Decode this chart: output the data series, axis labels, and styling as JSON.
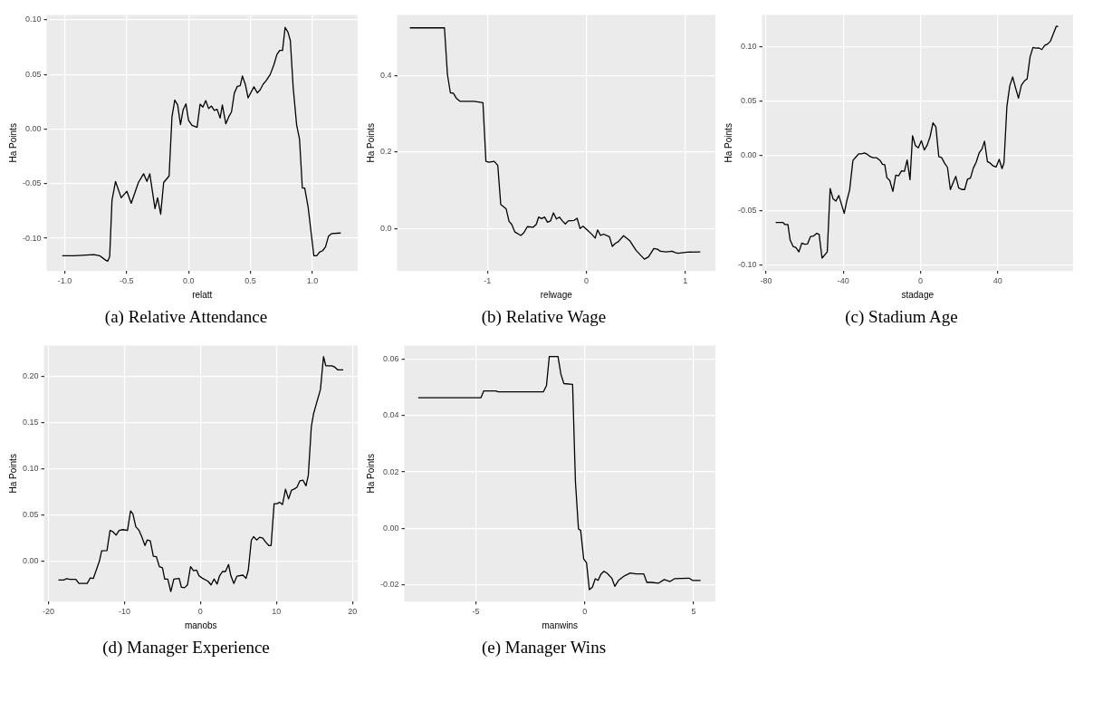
{
  "chart_data": [
    {
      "type": "line",
      "title": "(a) Relative Attendance",
      "xlabel": "relatt",
      "ylabel": "Ha Points",
      "grid": true,
      "xlim": [
        -1.146,
        1.366
      ],
      "xticks": [
        {
          "value": -1,
          "label": "-1.0"
        },
        -0.5,
        {
          "value": 0,
          "label": "0.0"
        },
        0.5,
        {
          "value": 1,
          "label": "1.0"
        }
      ],
      "ylim": [
        -0.13,
        0.1045
      ],
      "yticks": [
        {
          "value": -0.1,
          "label": "-0.10"
        },
        -0.05,
        {
          "value": 0,
          "label": "0.00"
        },
        0.05,
        {
          "value": 0.1,
          "label": "0.10"
        }
      ],
      "x": [
        -1.02,
        -0.926,
        -0.764,
        -0.718,
        -0.671,
        -0.653,
        -0.637,
        -0.618,
        -0.59,
        -0.544,
        -0.498,
        -0.463,
        -0.405,
        -0.363,
        -0.336,
        -0.313,
        -0.271,
        -0.25,
        -0.225,
        -0.201,
        -0.157,
        -0.134,
        -0.111,
        -0.088,
        -0.065,
        -0.044,
        -0.021,
        0.0,
        0.028,
        0.069,
        0.093,
        0.116,
        0.139,
        0.162,
        0.185,
        0.208,
        0.231,
        0.255,
        0.273,
        0.301,
        0.324,
        0.347,
        0.37,
        0.394,
        0.417,
        0.435,
        0.458,
        0.481,
        0.528,
        0.556,
        0.579,
        0.602,
        0.625,
        0.66,
        0.69,
        0.713,
        0.736,
        0.759,
        0.78,
        0.803,
        0.822,
        0.845,
        0.873,
        0.896,
        0.919,
        0.938,
        0.965,
        1.012,
        1.035,
        1.058,
        1.083,
        1.106,
        1.13,
        1.157,
        1.229
      ],
      "series": [
        {
          "color": "#000000",
          "values": [
            -0.116,
            -0.116,
            -0.115,
            -0.116,
            -0.12,
            -0.121,
            -0.117,
            -0.065,
            -0.048,
            -0.063,
            -0.057,
            -0.068,
            -0.049,
            -0.041,
            -0.048,
            -0.041,
            -0.073,
            -0.063,
            -0.078,
            -0.049,
            -0.043,
            0.011,
            0.0265,
            0.022,
            0.004,
            0.0175,
            0.023,
            0.008,
            0.0033,
            0.0015,
            0.0227,
            0.02,
            0.026,
            0.0187,
            0.021,
            0.017,
            0.018,
            0.01,
            0.022,
            0.0048,
            0.011,
            0.0157,
            0.033,
            0.039,
            0.0397,
            0.0485,
            0.041,
            0.0285,
            0.0386,
            0.033,
            0.036,
            0.041,
            0.044,
            0.05,
            0.059,
            0.068,
            0.072,
            0.072,
            0.093,
            0.0886,
            0.081,
            0.038,
            0.0035,
            -0.009,
            -0.054,
            -0.054,
            -0.071,
            -0.116,
            -0.116,
            -0.1127,
            -0.1114,
            -0.108,
            -0.0982,
            -0.0957,
            -0.0952
          ]
        }
      ]
    },
    {
      "type": "line",
      "title": "(b) Relative Wage",
      "xlabel": "relwage",
      "ylabel": "Ha Points",
      "grid": true,
      "xlim": [
        -1.913,
        1.305
      ],
      "xticks": [
        -1,
        0,
        1
      ],
      "ylim": [
        -0.111,
        0.559
      ],
      "yticks": [
        {
          "value": 0,
          "label": "0.0"
        },
        0.2,
        0.4
      ],
      "x": [
        -1.784,
        -1.434,
        -1.404,
        -1.374,
        -1.344,
        -1.314,
        -1.278,
        -1.135,
        -1.045,
        -1.015,
        -0.985,
        -0.931,
        -0.895,
        -0.865,
        -0.811,
        -0.781,
        -0.754,
        -0.722,
        -0.662,
        -0.632,
        -0.596,
        -0.536,
        -0.506,
        -0.482,
        -0.452,
        -0.422,
        -0.392,
        -0.362,
        -0.332,
        -0.302,
        -0.272,
        -0.242,
        -0.212,
        -0.183,
        -0.123,
        -0.093,
        -0.063,
        -0.033,
        0.0,
        0.06,
        0.09,
        0.114,
        0.144,
        0.174,
        0.234,
        0.263,
        0.293,
        0.323,
        0.377,
        0.437,
        0.503,
        0.587,
        0.629,
        0.683,
        0.719,
        0.749,
        0.808,
        0.868,
        0.898,
        0.928,
        1.021,
        1.153
      ],
      "series": [
        {
          "color": "#000000",
          "values": [
            0.525,
            0.525,
            0.403,
            0.355,
            0.354,
            0.341,
            0.333,
            0.333,
            0.329,
            0.176,
            0.1735,
            0.176,
            0.165,
            0.063,
            0.052,
            0.019,
            0.011,
            -0.009,
            -0.018,
            -0.011,
            0.005,
            0.0036,
            0.011,
            0.03,
            0.026,
            0.03,
            0.0165,
            0.02,
            0.041,
            0.025,
            0.03,
            0.02,
            0.012,
            0.02,
            0.0215,
            0.027,
            0.0,
            0.006,
            -0.0015,
            -0.016,
            -0.025,
            -0.0036,
            -0.018,
            -0.0145,
            -0.0215,
            -0.0466,
            -0.039,
            -0.0344,
            -0.0186,
            -0.031,
            -0.057,
            -0.08,
            -0.074,
            -0.052,
            -0.054,
            -0.0595,
            -0.061,
            -0.0595,
            -0.063,
            -0.0645,
            -0.0616,
            -0.061
          ]
        }
      ]
    },
    {
      "type": "line",
      "title": "(c) Stadium Age",
      "xlabel": "stadage",
      "ylabel": "Ha Points",
      "grid": true,
      "xlim": [
        -82.1,
        79.1
      ],
      "xticks": [
        -80,
        -40,
        0,
        40
      ],
      "ylim": [
        -0.1055,
        0.129
      ],
      "yticks": [
        {
          "value": -0.1,
          "label": "-0.10"
        },
        -0.05,
        {
          "value": 0,
          "label": "0.00"
        },
        0.05,
        {
          "value": 0.1,
          "label": "0.10"
        }
      ],
      "x": [
        -75.0,
        -71.3,
        -70.2,
        -68.7,
        -67.5,
        -66.0,
        -64.5,
        -63.0,
        -61.5,
        -60.0,
        -58.5,
        -57.0,
        -55.5,
        -53.7,
        -52.5,
        -51.0,
        -48.3,
        -46.8,
        -45.3,
        -43.8,
        -42.3,
        -39.5,
        -38.2,
        -36.7,
        -35.0,
        -33.5,
        -32.0,
        -30.5,
        -29.0,
        -27.5,
        -26.0,
        -24.5,
        -22.7,
        -20.9,
        -19.7,
        -18.5,
        -17.4,
        -15.9,
        -14.3,
        -12.8,
        -11.3,
        -9.8,
        -8.3,
        -6.9,
        -5.4,
        -4.1,
        -2.6,
        -1.1,
        0.5,
        2.0,
        3.5,
        5.0,
        6.5,
        8.0,
        9.5,
        11.0,
        12.5,
        14.0,
        15.5,
        18.3,
        19.8,
        21.4,
        22.9,
        24.4,
        25.9,
        27.4,
        28.9,
        30.4,
        31.9,
        33.2,
        34.7,
        36.2,
        37.7,
        39.2,
        40.8,
        42.3,
        43.3,
        44.8,
        46.3,
        47.8,
        49.3,
        50.8,
        52.3,
        53.8,
        55.3,
        56.8,
        58.3,
        59.8,
        61.4,
        62.9,
        64.4,
        65.9,
        67.4,
        70.4,
        71.4
      ],
      "series": [
        {
          "color": "#000000",
          "values": [
            -0.061,
            -0.061,
            -0.063,
            -0.063,
            -0.0774,
            -0.083,
            -0.084,
            -0.088,
            -0.08,
            -0.081,
            -0.0807,
            -0.074,
            -0.0736,
            -0.071,
            -0.072,
            -0.0937,
            -0.088,
            -0.03,
            -0.0394,
            -0.0415,
            -0.0364,
            -0.0528,
            -0.0415,
            -0.0314,
            -0.0043,
            -0.0013,
            0.0018,
            0.0018,
            0.0025,
            0.0013,
            -0.0008,
            -0.0018,
            -0.0018,
            -0.0043,
            -0.0078,
            -0.0083,
            -0.02,
            -0.0226,
            -0.0327,
            -0.0178,
            -0.0183,
            -0.0138,
            -0.0143,
            -0.0038,
            -0.0219,
            0.0183,
            0.0093,
            0.0073,
            0.0138,
            0.0053,
            0.0098,
            0.0176,
            0.0302,
            0.0264,
            -0.0008,
            -0.0018,
            -0.0068,
            -0.0106,
            -0.0309,
            -0.0188,
            -0.0294,
            -0.0309,
            -0.0309,
            -0.0214,
            -0.0204,
            -0.0113,
            -0.0058,
            0.0025,
            0.0063,
            0.0133,
            -0.0053,
            -0.0068,
            -0.0093,
            -0.0103,
            -0.0033,
            -0.0118,
            -0.0063,
            0.0452,
            0.0641,
            0.0721,
            0.0621,
            0.0528,
            0.0646,
            0.0683,
            0.0704,
            0.0905,
            0.0992,
            0.0985,
            0.0987,
            0.0972,
            0.101,
            0.1023,
            0.105,
            0.1186,
            0.1183
          ]
        }
      ]
    },
    {
      "type": "line",
      "title": "(d) Manager Experience",
      "xlabel": "manobs",
      "ylabel": "Ha Points",
      "grid": true,
      "xlim": [
        -20.6,
        20.7
      ],
      "xticks": [
        -20,
        -10,
        0,
        10,
        20
      ],
      "ylim": [
        -0.0434,
        0.2335
      ],
      "yticks": [
        {
          "value": 0,
          "label": "0.00"
        },
        0.05,
        {
          "value": 0.1,
          "label": "0.10"
        },
        0.15,
        {
          "value": 0.2,
          "label": "0.20"
        }
      ],
      "x": [
        -18.7,
        -18.0,
        -17.6,
        -17.2,
        -16.4,
        -16.0,
        -14.9,
        -14.5,
        -14.1,
        -13.3,
        -13.0,
        -12.3,
        -11.9,
        -11.5,
        -11.1,
        -10.7,
        -10.2,
        -9.6,
        -9.2,
        -8.9,
        -8.5,
        -8.1,
        -7.7,
        -7.3,
        -7.0,
        -6.6,
        -6.2,
        -5.8,
        -5.4,
        -5.0,
        -4.7,
        -4.3,
        -3.9,
        -3.5,
        -2.8,
        -2.5,
        -2.1,
        -1.7,
        -1.3,
        -0.9,
        -0.5,
        -0.2,
        0.2,
        1.0,
        1.4,
        1.8,
        2.2,
        2.5,
        2.9,
        3.3,
        3.7,
        4.0,
        4.4,
        4.8,
        5.6,
        6.0,
        6.3,
        6.7,
        7.0,
        7.4,
        7.8,
        8.2,
        8.6,
        9.0,
        9.3,
        9.7,
        10.1,
        10.4,
        10.8,
        11.2,
        11.6,
        12.0,
        12.3,
        12.7,
        13.1,
        13.5,
        13.9,
        14.2,
        14.6,
        14.9,
        15.8,
        16.2,
        16.5,
        17.3,
        17.7,
        18.1,
        18.8
      ],
      "series": [
        {
          "color": "#000000",
          "values": [
            -0.02,
            -0.02,
            -0.0187,
            -0.0193,
            -0.0193,
            -0.0238,
            -0.0238,
            -0.0178,
            -0.0184,
            0.0003,
            0.0115,
            0.0118,
            0.0335,
            0.032,
            0.0284,
            0.0335,
            0.0344,
            0.0335,
            0.0546,
            0.0516,
            0.0374,
            0.0338,
            0.0262,
            0.0172,
            0.0232,
            0.0223,
            0.0057,
            0.0051,
            -0.0057,
            -0.0069,
            -0.019,
            -0.019,
            -0.0326,
            -0.019,
            -0.0184,
            -0.028,
            -0.0284,
            -0.0253,
            -0.0057,
            -0.01,
            -0.0094,
            -0.0154,
            -0.0178,
            -0.0214,
            -0.0253,
            -0.019,
            -0.0244,
            -0.016,
            -0.0109,
            -0.0109,
            -0.0033,
            -0.0154,
            -0.0238,
            -0.016,
            -0.0148,
            -0.0184,
            -0.0094,
            0.0229,
            0.0268,
            0.0232,
            0.0262,
            0.0253,
            0.0208,
            0.0172,
            0.0172,
            0.0624,
            0.0624,
            0.064,
            0.0615,
            0.0781,
            0.0676,
            0.0772,
            0.0781,
            0.0802,
            0.0872,
            0.0878,
            0.0818,
            0.0932,
            0.146,
            0.16,
            0.186,
            0.2214,
            0.2115,
            0.2115,
            0.21,
            0.207,
            0.207
          ]
        }
      ]
    },
    {
      "type": "line",
      "title": "(e) Manager Wins",
      "xlabel": "manwins",
      "ylabel": "Ha Points",
      "grid": true,
      "xlim": [
        -8.29,
        6.0
      ],
      "xticks": [
        -5,
        0,
        5
      ],
      "ylim": [
        -0.0259,
        0.0648
      ],
      "yticks": [
        -0.02,
        {
          "value": 0,
          "label": "0.00"
        },
        0.02,
        0.04,
        0.06
      ],
      "x": [
        -7.65,
        -4.77,
        -4.64,
        -4.1,
        -3.97,
        -1.9,
        -1.76,
        -1.63,
        -1.23,
        -1.1,
        -0.96,
        -0.56,
        -0.43,
        -0.29,
        -0.19,
        -0.05,
        0.08,
        0.21,
        0.35,
        0.48,
        0.61,
        0.75,
        0.88,
        1.02,
        1.24,
        1.38,
        1.55,
        1.82,
        2.09,
        2.35,
        2.71,
        2.85,
        3.05,
        3.38,
        3.65,
        3.92,
        4.12,
        4.79,
        4.95,
        5.32
      ],
      "series": [
        {
          "color": "#000000",
          "values": [
            0.0463,
            0.0463,
            0.0487,
            0.0487,
            0.0484,
            0.0484,
            0.0506,
            0.0609,
            0.0609,
            0.0547,
            0.0513,
            0.051,
            0.0166,
            -0.0002,
            -0.0007,
            -0.0108,
            -0.0122,
            -0.0217,
            -0.0208,
            -0.0178,
            -0.0184,
            -0.0161,
            -0.0152,
            -0.0158,
            -0.0176,
            -0.0205,
            -0.0184,
            -0.0168,
            -0.0158,
            -0.0161,
            -0.0161,
            -0.0191,
            -0.0191,
            -0.0194,
            -0.0181,
            -0.0188,
            -0.0178,
            -0.0176,
            -0.0184,
            -0.0184
          ]
        }
      ]
    }
  ]
}
